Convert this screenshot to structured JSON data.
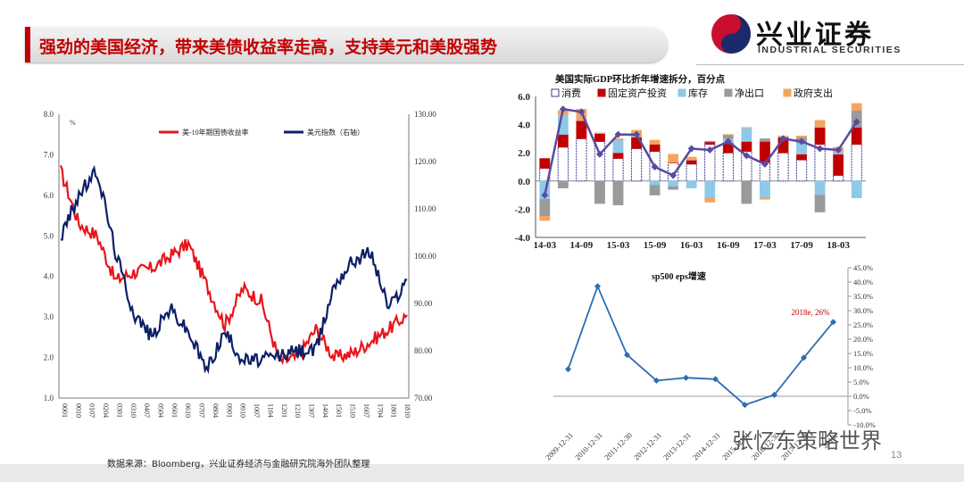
{
  "header": {
    "title": "强劲的美国经济，带来美债收益率走高，支持美元和美股强势",
    "logo_cn": "兴业证券",
    "logo_en": "INDUSTRIAL SECURITIES"
  },
  "footer": {
    "source": "数据来源：Bloomberg，兴业证券经济与金融研究院海外团队整理",
    "page_number": "13",
    "watermark": "张忆东策略世界"
  },
  "colors": {
    "red": "#e8151b",
    "navy": "#0c1f66",
    "gdp_line": "#5a4aa0",
    "eps_line": "#2c6db3"
  },
  "chart_data": [
    {
      "type": "line",
      "title": "",
      "unit_left": "%",
      "series": [
        {
          "name": "美-10年期国债收益率",
          "axis": "left",
          "x": [
            "0001",
            "0101",
            "0201",
            "0301",
            "0401",
            "0501",
            "0601",
            "0701",
            "0801",
            "0901",
            "1001",
            "1101",
            "1201",
            "1301",
            "1401",
            "1501",
            "1601",
            "1701",
            "1801",
            "1809"
          ],
          "values": [
            6.6,
            5.3,
            5.0,
            3.9,
            4.1,
            4.2,
            4.5,
            4.8,
            3.8,
            2.8,
            3.7,
            3.4,
            1.9,
            2.0,
            2.7,
            2.0,
            2.1,
            2.4,
            2.7,
            3.05
          ]
        },
        {
          "name": "美元指数（右轴）",
          "axis": "right",
          "x": [
            "0001",
            "0101",
            "0201",
            "0301",
            "0401",
            "0501",
            "0601",
            "0701",
            "0801",
            "0901",
            "1001",
            "1101",
            "1201",
            "1301",
            "1401",
            "1501",
            "1601",
            "1701",
            "1801",
            "1809"
          ],
          "values": [
            104,
            113,
            118,
            101,
            88,
            83,
            89,
            84,
            76,
            84,
            78,
            78,
            79,
            80,
            80,
            94,
            99,
            101,
            89,
            95
          ]
        }
      ],
      "left_axis": {
        "ticks": [
          "8.0",
          "7.0",
          "6.0",
          "5.0",
          "4.0",
          "3.0",
          "2.0",
          "1.0"
        ],
        "ylim": [
          1,
          8
        ]
      },
      "right_axis": {
        "ticks": [
          "130.00",
          "120.00",
          "110.00",
          "100.00",
          "90.00",
          "80.00",
          "70.00"
        ],
        "ylim": [
          70,
          130
        ]
      },
      "x_ticks": [
        "0001",
        "0010",
        "0107",
        "0204",
        "0301",
        "0310",
        "0407",
        "0504",
        "0601",
        "0610",
        "0707",
        "0804",
        "0901",
        "0910",
        "1007",
        "1104",
        "1201",
        "1210",
        "1307",
        "1404",
        "1501",
        "1510",
        "1607",
        "1704",
        "1801",
        "1810"
      ],
      "legend": "top"
    },
    {
      "type": "bar",
      "title": "美国实际GDP环比折年增速拆分，百分点",
      "ylim": [
        -4,
        6
      ],
      "y_ticks": [
        "6.0",
        "4.0",
        "2.0",
        "0.0",
        "-2.0",
        "-4.0"
      ],
      "x_tick_labels": [
        "14-03",
        "14-09",
        "15-03",
        "15-09",
        "16-03",
        "16-09",
        "17-03",
        "17-09",
        "18-03"
      ],
      "legend": "top",
      "categories": [
        "14Q1",
        "14Q2",
        "14Q3",
        "14Q4",
        "15Q1",
        "15Q2",
        "15Q3",
        "15Q4",
        "16Q1",
        "16Q2",
        "16Q3",
        "16Q4",
        "17Q1",
        "17Q2",
        "17Q3",
        "17Q4",
        "18Q1",
        "18Q2"
      ],
      "series": [
        {
          "name": "消费",
          "values": [
            0.9,
            2.4,
            3.0,
            2.8,
            1.6,
            2.3,
            2.1,
            1.3,
            1.2,
            2.6,
            2.0,
            2.1,
            1.3,
            2.0,
            1.5,
            2.6,
            0.4,
            2.6
          ]
        },
        {
          "name": "固定资产投资",
          "values": [
            0.7,
            0.9,
            1.3,
            0.6,
            0.4,
            0.8,
            0.5,
            0.0,
            0.3,
            0.2,
            0.7,
            0.7,
            1.5,
            1.1,
            0.4,
            1.2,
            1.5,
            1.2
          ]
        },
        {
          "name": "库存",
          "values": [
            -1.3,
            1.4,
            0.0,
            0.0,
            0.9,
            0.1,
            -0.3,
            -0.4,
            -0.5,
            -1.2,
            0.3,
            1.0,
            -1.2,
            0.1,
            0.8,
            -1.0,
            0.2,
            -1.2
          ]
        },
        {
          "name": "净出口",
          "values": [
            -1.2,
            -0.5,
            0.0,
            -1.6,
            -1.7,
            0.0,
            -0.7,
            -0.2,
            0.0,
            0.0,
            0.3,
            -1.6,
            0.2,
            0.0,
            0.4,
            -1.2,
            0.0,
            1.2
          ]
        },
        {
          "name": "政府支出",
          "values": [
            -0.3,
            0.3,
            0.8,
            0.0,
            0.1,
            0.4,
            0.3,
            0.6,
            0.2,
            -0.3,
            0.0,
            0.0,
            -0.1,
            0.0,
            0.1,
            0.5,
            0.3,
            0.5
          ]
        }
      ],
      "line": {
        "name": "GDP",
        "values": [
          -1.0,
          5.1,
          4.9,
          1.9,
          3.3,
          3.3,
          1.0,
          0.4,
          2.3,
          2.2,
          2.8,
          1.8,
          1.2,
          3.0,
          2.8,
          2.3,
          2.2,
          4.2
        ]
      }
    },
    {
      "type": "line",
      "title": "sp500 eps增速",
      "x": [
        "2009-12-31",
        "2010-12-31",
        "2011-12-30",
        "2012-12-31",
        "2013-12-31",
        "2014-12-31",
        "2015-12-31",
        "2016-12-30",
        "2017-12-29",
        "2018e"
      ],
      "values": [
        9.5,
        38.5,
        14.5,
        5.5,
        6.5,
        6.0,
        -3.0,
        0.5,
        13.5,
        26.0
      ],
      "ylim": [
        -10,
        45
      ],
      "y_ticks": [
        "45.0%",
        "40.0%",
        "35.0%",
        "30.0%",
        "25.0%",
        "20.0%",
        "15.0%",
        "10.0%",
        "5.0%",
        "0.0%",
        "-5.0%",
        "-10.0%"
      ],
      "annotation": "2018e, 26%"
    }
  ]
}
